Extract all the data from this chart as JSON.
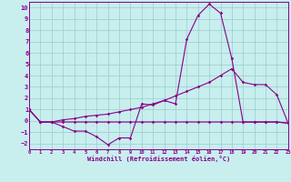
{
  "xlabel": "Windchill (Refroidissement éolien,°C)",
  "background_color": "#c8eeee",
  "line_color": "#880088",
  "grid_color": "#99cccc",
  "xlim": [
    0,
    23
  ],
  "ylim": [
    -2.5,
    10.5
  ],
  "xticks": [
    0,
    1,
    2,
    3,
    4,
    5,
    6,
    7,
    8,
    9,
    10,
    11,
    12,
    13,
    14,
    15,
    16,
    17,
    18,
    19,
    20,
    21,
    22,
    23
  ],
  "yticks": [
    -2,
    -1,
    0,
    1,
    2,
    3,
    4,
    5,
    6,
    7,
    8,
    9,
    10
  ],
  "s1_x": [
    0,
    1,
    2,
    3,
    4,
    5,
    6,
    7,
    8,
    9,
    10,
    11,
    12,
    13,
    14,
    15,
    16,
    17,
    18,
    19,
    20,
    21,
    22,
    23
  ],
  "s1_y": [
    1.0,
    -0.1,
    -0.1,
    -0.5,
    -0.9,
    -0.9,
    -1.4,
    -2.1,
    -1.5,
    -1.5,
    1.5,
    1.4,
    1.8,
    1.5,
    7.2,
    9.3,
    10.3,
    9.5,
    5.5,
    -0.1,
    -0.1,
    -0.1,
    -0.1,
    -0.2
  ],
  "s2_x": [
    0,
    1,
    2,
    3,
    4,
    5,
    6,
    7,
    8,
    9,
    10,
    11,
    12,
    13,
    14,
    15,
    16,
    17,
    18,
    19,
    20,
    21,
    22,
    23
  ],
  "s2_y": [
    1.0,
    -0.1,
    -0.1,
    0.1,
    0.2,
    0.4,
    0.5,
    0.6,
    0.8,
    1.0,
    1.2,
    1.5,
    1.8,
    2.2,
    2.6,
    3.0,
    3.4,
    4.0,
    4.6,
    3.4,
    3.2,
    3.2,
    2.3,
    -0.2
  ],
  "s3_x": [
    0,
    1,
    2,
    3,
    4,
    5,
    6,
    7,
    8,
    9,
    10,
    11,
    12,
    13,
    14,
    15,
    16,
    17,
    18,
    19,
    20,
    21,
    22,
    23
  ],
  "s3_y": [
    1.0,
    -0.1,
    -0.1,
    -0.1,
    -0.1,
    -0.1,
    -0.1,
    -0.1,
    -0.1,
    -0.1,
    -0.1,
    -0.1,
    -0.1,
    -0.1,
    -0.1,
    -0.1,
    -0.1,
    -0.1,
    -0.1,
    -0.1,
    -0.1,
    -0.1,
    -0.1,
    -0.2
  ],
  "markersize": 1.8,
  "linewidth": 0.8
}
